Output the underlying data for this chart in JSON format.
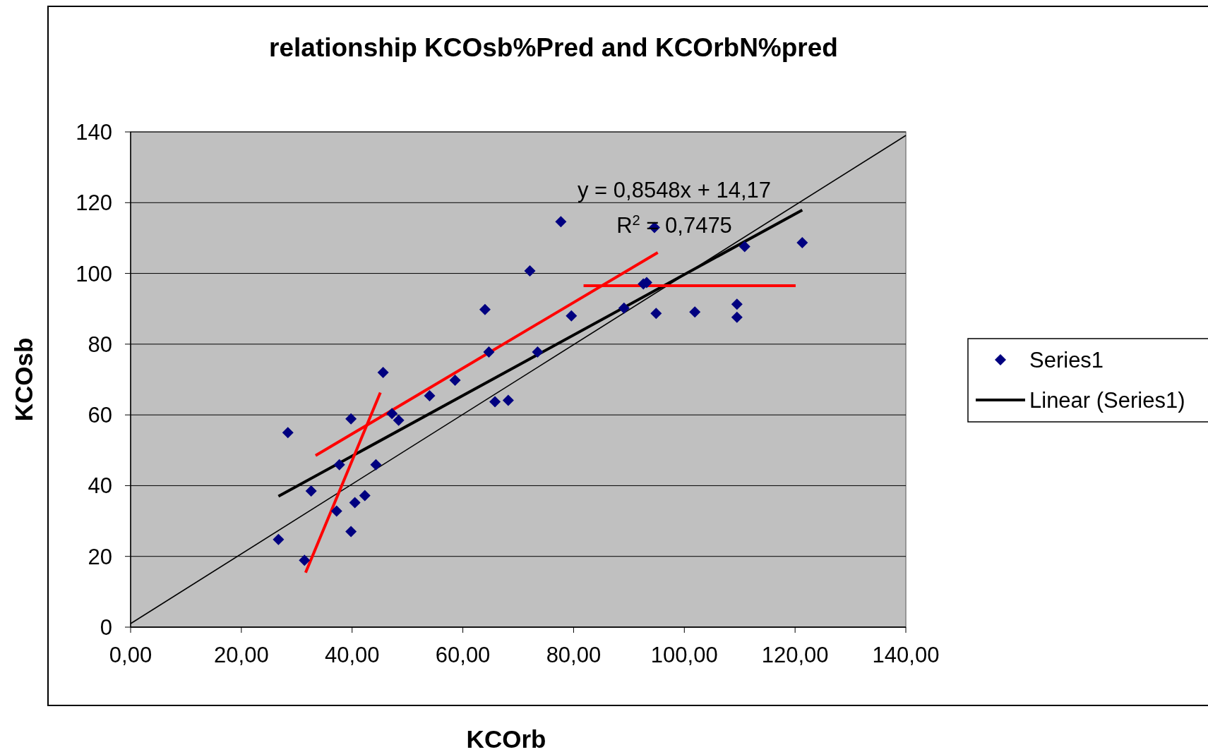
{
  "chart_data": {
    "type": "scatter",
    "title": "relationship KCOsb%Pred and KCOrbN%pred",
    "xlabel": "KCOrb",
    "ylabel": "KCOsb",
    "annotations": [
      "y = 0,8548x + 14,17",
      "R$^{2}$ = 0,7475"
    ],
    "xlim": [
      0,
      140
    ],
    "ylim": [
      0,
      140
    ],
    "xticks": [
      {
        "value": 0,
        "label": "0,00"
      },
      {
        "value": 20,
        "label": "20,00"
      },
      {
        "value": 40,
        "label": "40,00"
      },
      {
        "value": 60,
        "label": "60,00"
      },
      {
        "value": 80,
        "label": "80,00"
      },
      {
        "value": 100,
        "label": "100,00"
      },
      {
        "value": 120,
        "label": "120,00"
      },
      {
        "value": 140,
        "label": "140,00"
      }
    ],
    "yticks": [
      0,
      20,
      40,
      60,
      80,
      100,
      120,
      140
    ],
    "grid": "y",
    "legend": "right",
    "series": [
      {
        "name": "Series1",
        "marker": "diamond",
        "color": "#000080",
        "x": [
          26.7,
          28.4,
          31.4,
          32.6,
          37.2,
          37.7,
          39.8,
          39.8,
          40.5,
          42.3,
          44.3,
          45.6,
          47.2,
          48.4,
          54.0,
          58.6,
          64.0,
          64.7,
          65.8,
          68.2,
          72.1,
          73.5,
          77.7,
          79.6,
          89.1,
          92.6,
          93.2,
          94.6,
          94.9,
          101.9,
          109.5,
          109.5,
          110.9,
          121.3
        ],
        "values": [
          24.8,
          55.0,
          18.9,
          38.5,
          32.8,
          45.9,
          58.9,
          27.0,
          35.2,
          37.2,
          45.9,
          72.0,
          60.4,
          58.5,
          65.4,
          69.8,
          89.8,
          77.8,
          63.7,
          64.1,
          100.7,
          77.8,
          114.6,
          88.0,
          90.2,
          97.0,
          97.4,
          113.0,
          88.7,
          89.1,
          91.3,
          87.6,
          107.6,
          108.7
        ]
      },
      {
        "name": "Linear (Series1)",
        "type": "line",
        "color": "#000000",
        "x": [
          26.7,
          121.3
        ],
        "values": [
          37.0,
          117.9
        ]
      },
      {
        "type": "line",
        "color": "#000000",
        "x": [
          0,
          140
        ],
        "values": [
          1,
          139
        ]
      },
      {
        "type": "line",
        "color": "#ff0000",
        "x": [
          31.6,
          45.1
        ],
        "values": [
          15.4,
          66.3
        ]
      },
      {
        "type": "line",
        "color": "#ff0000",
        "x": [
          33.4,
          95.2
        ],
        "values": [
          48.5,
          105.9
        ]
      },
      {
        "type": "line",
        "color": "#ff0000",
        "x": [
          81.8,
          120.1
        ],
        "values": [
          96.5,
          96.5
        ]
      }
    ]
  }
}
